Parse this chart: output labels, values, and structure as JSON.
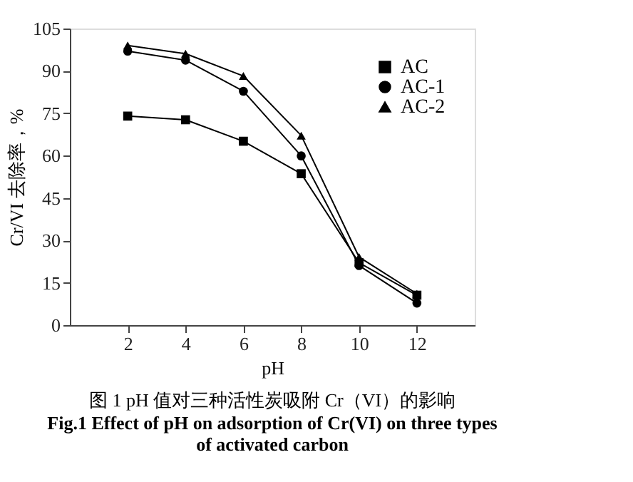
{
  "chart_data": {
    "type": "line",
    "xlabel": "pH",
    "ylabel": "Cr/VI  去除率，%",
    "x": [
      2,
      4,
      6,
      8,
      10,
      12
    ],
    "series": [
      {
        "name": "AC",
        "color": "#000000",
        "marker": "square",
        "values": [
          74.0,
          72.7,
          65.1,
          53.6,
          22.1,
          10.6
        ]
      },
      {
        "name": "AC-1",
        "color": "#000000",
        "marker": "circle",
        "values": [
          97.0,
          93.8,
          82.8,
          59.9,
          21.1,
          7.8
        ]
      },
      {
        "name": "AC-2",
        "color": "#000000",
        "marker": "triangle",
        "values": [
          99.0,
          96.1,
          88.2,
          67.1,
          24.1,
          11.1
        ]
      }
    ],
    "xlim": [
      0,
      14
    ],
    "xticks": [
      2,
      4,
      6,
      8,
      10,
      12
    ],
    "ylim": [
      0,
      105
    ],
    "yticks": [
      0,
      15,
      30,
      45,
      60,
      75,
      90,
      105
    ],
    "grid": false,
    "legend": "top right",
    "line_style": "solid",
    "annotations": [
      "图 1    pH 值对三种活性炭吸附 Cr（VI）的影响",
      "Fig.1 Effect of pH on adsorption of Cr(VI) on three types of activated carbon"
    ]
  }
}
